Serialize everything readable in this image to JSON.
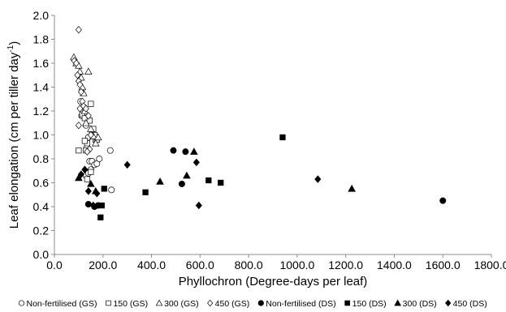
{
  "chart_data": {
    "type": "scatter",
    "xlabel": "Phyllochron (Degree-days per leaf)",
    "ylabel": "Leaf elongation (cm per tiller day",
    "ylabel_sup": "-1",
    "ylabel_close": ")",
    "xlim": [
      0,
      1800
    ],
    "ylim": [
      0,
      2.0
    ],
    "xticks": [
      0,
      200,
      400,
      600,
      800,
      1000,
      1200,
      1400,
      1600,
      1800
    ],
    "xtick_labels": [
      "0.0",
      "200.0",
      "400.0",
      "600.0",
      "800.0",
      "1000.0",
      "1200.0",
      "1400.0",
      "1600.0",
      "1800.0"
    ],
    "yticks": [
      0,
      0.2,
      0.4,
      0.6,
      0.8,
      1.0,
      1.2,
      1.4,
      1.6,
      1.8,
      2.0
    ],
    "ytick_labels": [
      "0.0",
      "0.2",
      "0.4",
      "0.6",
      "0.8",
      "1.0",
      "1.2",
      "1.4",
      "1.6",
      "1.8",
      "2.0"
    ],
    "grid": false,
    "legend_position": "bottom",
    "series": [
      {
        "name": "Non-fertilised (GS)",
        "marker": "circle",
        "filled": false,
        "points": [
          [
            108,
            1.28
          ],
          [
            112,
            1.16
          ],
          [
            118,
            1.21
          ],
          [
            122,
            1.23
          ],
          [
            125,
            1.22
          ],
          [
            128,
            1.14
          ],
          [
            130,
            1.08
          ],
          [
            138,
            1.12
          ],
          [
            140,
            0.98
          ],
          [
            135,
            0.9
          ],
          [
            145,
            0.78
          ],
          [
            155,
            0.78
          ],
          [
            165,
            0.75
          ],
          [
            175,
            0.76
          ],
          [
            185,
            0.8
          ],
          [
            130,
            0.66
          ],
          [
            150,
            0.71
          ],
          [
            140,
            0.68
          ],
          [
            230,
            0.87
          ],
          [
            235,
            0.54
          ]
        ]
      },
      {
        "name": "150 (GS)",
        "marker": "square",
        "filled": false,
        "points": [
          [
            100,
            0.87
          ],
          [
            115,
            1.17
          ],
          [
            125,
            1.14
          ],
          [
            135,
            0.93
          ],
          [
            145,
            1.12
          ],
          [
            150,
            1.26
          ],
          [
            155,
            1.03
          ],
          [
            160,
            1.05
          ],
          [
            165,
            1.0
          ],
          [
            170,
            0.96
          ],
          [
            175,
            0.96
          ],
          [
            125,
            0.95
          ],
          [
            130,
            0.87
          ],
          [
            135,
            0.63
          ],
          [
            150,
            0.69
          ]
        ]
      },
      {
        "name": "300 (GS)",
        "marker": "triangle",
        "filled": false,
        "points": [
          [
            80,
            1.65
          ],
          [
            90,
            1.6
          ],
          [
            100,
            1.58
          ],
          [
            105,
            1.53
          ],
          [
            110,
            1.48
          ],
          [
            115,
            1.4
          ],
          [
            120,
            1.35
          ],
          [
            125,
            1.2
          ],
          [
            130,
            1.1
          ],
          [
            140,
            1.53
          ],
          [
            150,
            1.05
          ],
          [
            160,
            0.99
          ],
          [
            170,
            0.93
          ],
          [
            180,
            0.98
          ]
        ]
      },
      {
        "name": "450 (GS)",
        "marker": "diamond",
        "filled": false,
        "points": [
          [
            100,
            1.88
          ],
          [
            82,
            1.62
          ],
          [
            90,
            1.6
          ],
          [
            95,
            1.5
          ],
          [
            100,
            1.45
          ],
          [
            105,
            1.42
          ],
          [
            110,
            1.36
          ],
          [
            115,
            1.28
          ],
          [
            120,
            1.24
          ],
          [
            100,
            1.08
          ],
          [
            105,
            1.22
          ],
          [
            130,
            1.22
          ],
          [
            140,
            1.16
          ],
          [
            150,
            1.0
          ],
          [
            145,
            0.88
          ],
          [
            135,
            0.86
          ]
        ]
      },
      {
        "name": "Non-fertilised (DS)",
        "marker": "circle",
        "filled": true,
        "points": [
          [
            140,
            0.42
          ],
          [
            165,
            0.4
          ],
          [
            180,
            0.41
          ],
          [
            490,
            0.87
          ],
          [
            525,
            0.59
          ],
          [
            540,
            0.86
          ],
          [
            1600,
            0.45
          ]
        ]
      },
      {
        "name": "150 (DS)",
        "marker": "square",
        "filled": true,
        "points": [
          [
            190,
            0.31
          ],
          [
            195,
            0.41
          ],
          [
            205,
            0.55
          ],
          [
            375,
            0.52
          ],
          [
            635,
            0.62
          ],
          [
            685,
            0.6
          ],
          [
            940,
            0.98
          ]
        ]
      },
      {
        "name": "300 (DS)",
        "marker": "triangle",
        "filled": true,
        "points": [
          [
            100,
            0.64
          ],
          [
            150,
            0.59
          ],
          [
            170,
            0.53
          ],
          [
            435,
            0.61
          ],
          [
            545,
            0.66
          ],
          [
            575,
            0.86
          ],
          [
            1225,
            0.55
          ]
        ]
      },
      {
        "name": "450 (DS)",
        "marker": "diamond",
        "filled": true,
        "points": [
          [
            110,
            0.67
          ],
          [
            125,
            0.71
          ],
          [
            140,
            0.53
          ],
          [
            160,
            0.41
          ],
          [
            175,
            0.51
          ],
          [
            300,
            0.75
          ],
          [
            585,
            0.77
          ],
          [
            595,
            0.41
          ],
          [
            1085,
            0.63
          ]
        ]
      }
    ]
  }
}
